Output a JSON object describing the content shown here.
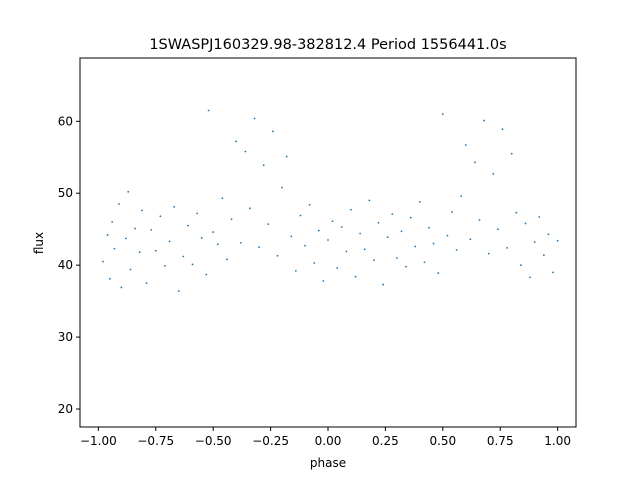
{
  "chart_data": {
    "type": "scatter",
    "title": "1SWASPJ160329.98-382812.4 Period 1556441.0s",
    "xlabel": "phase",
    "ylabel": "flux",
    "xlim": [
      -1.08,
      1.08
    ],
    "ylim": [
      17.5,
      68.8
    ],
    "xticks": [
      -1.0,
      -0.75,
      -0.5,
      -0.25,
      0.0,
      0.25,
      0.5,
      0.75,
      1.0
    ],
    "xtick_labels": [
      "−1.00",
      "−0.75",
      "−0.50",
      "−0.25",
      "0.00",
      "0.25",
      "0.50",
      "0.75",
      "1.00"
    ],
    "yticks": [
      20,
      30,
      40,
      50,
      60
    ],
    "ytick_labels": [
      "20",
      "30",
      "40",
      "50",
      "60"
    ],
    "grid": false,
    "point_color": "#1f77b4",
    "series": [
      {
        "description_values": "phase-folded light curve points (flux vs phase)",
        "points": [
          [
            -0.98,
            40.5
          ],
          [
            -0.96,
            44.2
          ],
          [
            -0.95,
            38.1
          ],
          [
            -0.94,
            46.0
          ],
          [
            -0.93,
            42.3
          ],
          [
            -0.91,
            48.5
          ],
          [
            -0.9,
            36.9
          ],
          [
            -0.88,
            43.7
          ],
          [
            -0.87,
            50.2
          ],
          [
            -0.86,
            39.4
          ],
          [
            -0.84,
            45.1
          ],
          [
            -0.82,
            41.8
          ],
          [
            -0.81,
            47.6
          ],
          [
            -0.79,
            37.5
          ],
          [
            -0.77,
            44.9
          ],
          [
            -0.75,
            42.0
          ],
          [
            -0.73,
            46.8
          ],
          [
            -0.71,
            39.9
          ],
          [
            -0.69,
            43.3
          ],
          [
            -0.67,
            48.1
          ],
          [
            -0.65,
            36.4
          ],
          [
            -0.63,
            41.2
          ],
          [
            -0.61,
            45.5
          ],
          [
            -0.59,
            40.1
          ],
          [
            -0.57,
            47.2
          ],
          [
            -0.55,
            43.8
          ],
          [
            -0.53,
            38.7
          ],
          [
            -0.52,
            61.5
          ],
          [
            -0.5,
            44.6
          ],
          [
            -0.48,
            42.9
          ],
          [
            -0.46,
            49.3
          ],
          [
            -0.44,
            40.8
          ],
          [
            -0.42,
            46.4
          ],
          [
            -0.4,
            57.2
          ],
          [
            -0.38,
            43.1
          ],
          [
            -0.36,
            55.8
          ],
          [
            -0.34,
            47.9
          ],
          [
            -0.32,
            60.4
          ],
          [
            -0.3,
            42.5
          ],
          [
            -0.28,
            53.9
          ],
          [
            -0.26,
            45.7
          ],
          [
            -0.24,
            58.6
          ],
          [
            -0.22,
            41.3
          ],
          [
            -0.2,
            50.8
          ],
          [
            -0.18,
            55.1
          ],
          [
            -0.16,
            44.0
          ],
          [
            -0.14,
            39.2
          ],
          [
            -0.12,
            46.9
          ],
          [
            -0.1,
            42.7
          ],
          [
            -0.08,
            48.4
          ],
          [
            -0.06,
            40.3
          ],
          [
            -0.04,
            44.8
          ],
          [
            -0.02,
            37.8
          ],
          [
            0.0,
            43.5
          ],
          [
            0.02,
            46.1
          ],
          [
            0.04,
            39.6
          ],
          [
            0.06,
            45.3
          ],
          [
            0.08,
            41.9
          ],
          [
            0.1,
            47.7
          ],
          [
            0.12,
            38.4
          ],
          [
            0.14,
            44.4
          ],
          [
            0.16,
            42.2
          ],
          [
            0.18,
            49.0
          ],
          [
            0.2,
            40.7
          ],
          [
            0.22,
            45.9
          ],
          [
            0.24,
            37.3
          ],
          [
            0.26,
            43.9
          ],
          [
            0.28,
            47.1
          ],
          [
            0.3,
            41.0
          ],
          [
            0.32,
            44.7
          ],
          [
            0.34,
            39.8
          ],
          [
            0.36,
            46.6
          ],
          [
            0.38,
            42.6
          ],
          [
            0.4,
            48.8
          ],
          [
            0.42,
            40.4
          ],
          [
            0.44,
            45.2
          ],
          [
            0.46,
            43.0
          ],
          [
            0.48,
            38.9
          ],
          [
            0.5,
            61.0
          ],
          [
            0.52,
            44.1
          ],
          [
            0.54,
            47.4
          ],
          [
            0.56,
            42.1
          ],
          [
            0.58,
            49.6
          ],
          [
            0.6,
            56.7
          ],
          [
            0.62,
            43.6
          ],
          [
            0.64,
            54.3
          ],
          [
            0.66,
            46.3
          ],
          [
            0.68,
            60.1
          ],
          [
            0.7,
            41.6
          ],
          [
            0.72,
            52.7
          ],
          [
            0.74,
            45.0
          ],
          [
            0.76,
            58.9
          ],
          [
            0.78,
            42.4
          ],
          [
            0.8,
            55.5
          ],
          [
            0.82,
            47.3
          ],
          [
            0.84,
            40.0
          ],
          [
            0.86,
            45.8
          ],
          [
            0.88,
            38.3
          ],
          [
            0.9,
            43.2
          ],
          [
            0.92,
            46.7
          ],
          [
            0.94,
            41.4
          ],
          [
            0.96,
            44.3
          ],
          [
            0.98,
            39.0
          ],
          [
            1.0,
            43.4
          ]
        ]
      }
    ]
  }
}
